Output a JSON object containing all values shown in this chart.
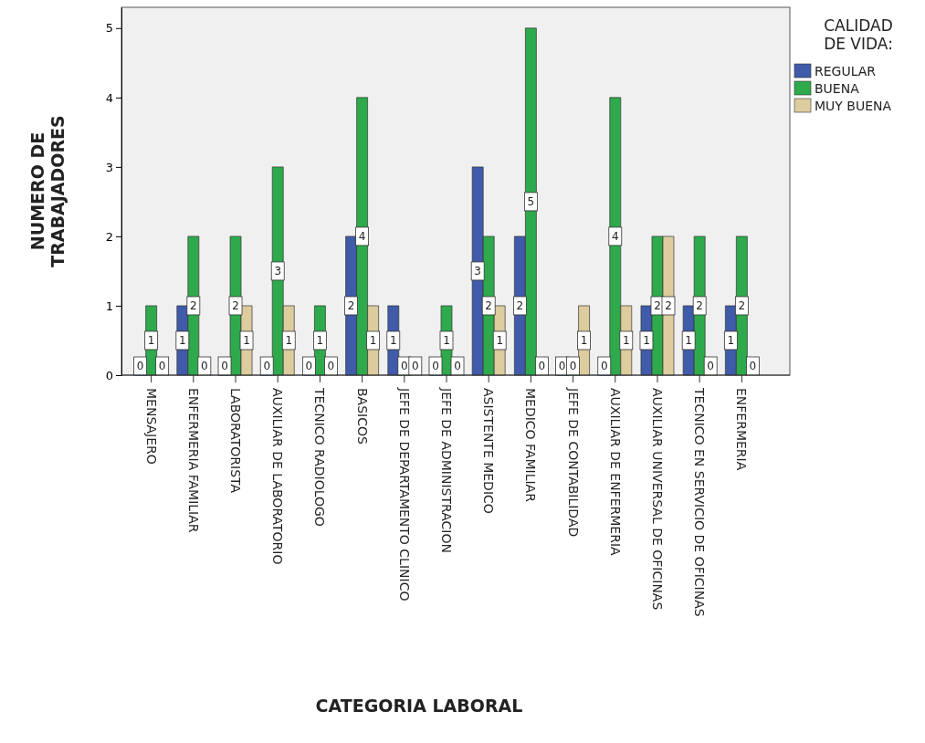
{
  "chart_data": {
    "type": "bar",
    "xlabel": "CATEGORIA LABORAL",
    "ylabel": "NUMERO DE TRABAJADORES",
    "legend_title": "CALIDAD DE VIDA:",
    "legend": "right",
    "data_labels": true,
    "categories": [
      "MENSAJERO",
      "ENFERMERIA FAMILIAR",
      "LABORATORISTA",
      "AUXILIAR DE LABORATORIO",
      "TECNICO RADIOLOGO",
      "BASICOS",
      "JEFE DE DEPARTAMENTO CLINICO",
      "JEFE DE ADMINISTRACION",
      "ASISTENTE MEDICO",
      "MEDICO FAMILIAR",
      "JEFE DE CONTABILIDAD",
      "AUXILIAR DE ENFERMERIA",
      "AUXILIAR UNIVERSAL DE OFICINAS",
      "TECNICO EN SERVICIO DE OFICINAS",
      "ENFERMERIA"
    ],
    "series": [
      {
        "name": "REGULAR",
        "color": "#3f5ba9",
        "values": [
          0,
          1,
          0,
          0,
          0,
          2,
          1,
          0,
          3,
          2,
          0,
          0,
          1,
          1,
          1
        ]
      },
      {
        "name": "BUENA",
        "color": "#2eaa4c",
        "values": [
          1,
          2,
          2,
          3,
          1,
          4,
          0,
          1,
          2,
          5,
          0,
          4,
          2,
          2,
          2
        ]
      },
      {
        "name": "MUY BUENA",
        "color": "#dccc9e",
        "values": [
          0,
          0,
          1,
          1,
          0,
          1,
          0,
          0,
          1,
          0,
          1,
          1,
          2,
          0,
          0
        ]
      }
    ],
    "ylim": [
      0,
      5.3
    ],
    "yticks": [
      0,
      1,
      2,
      3,
      4,
      5
    ],
    "grid": false
  }
}
